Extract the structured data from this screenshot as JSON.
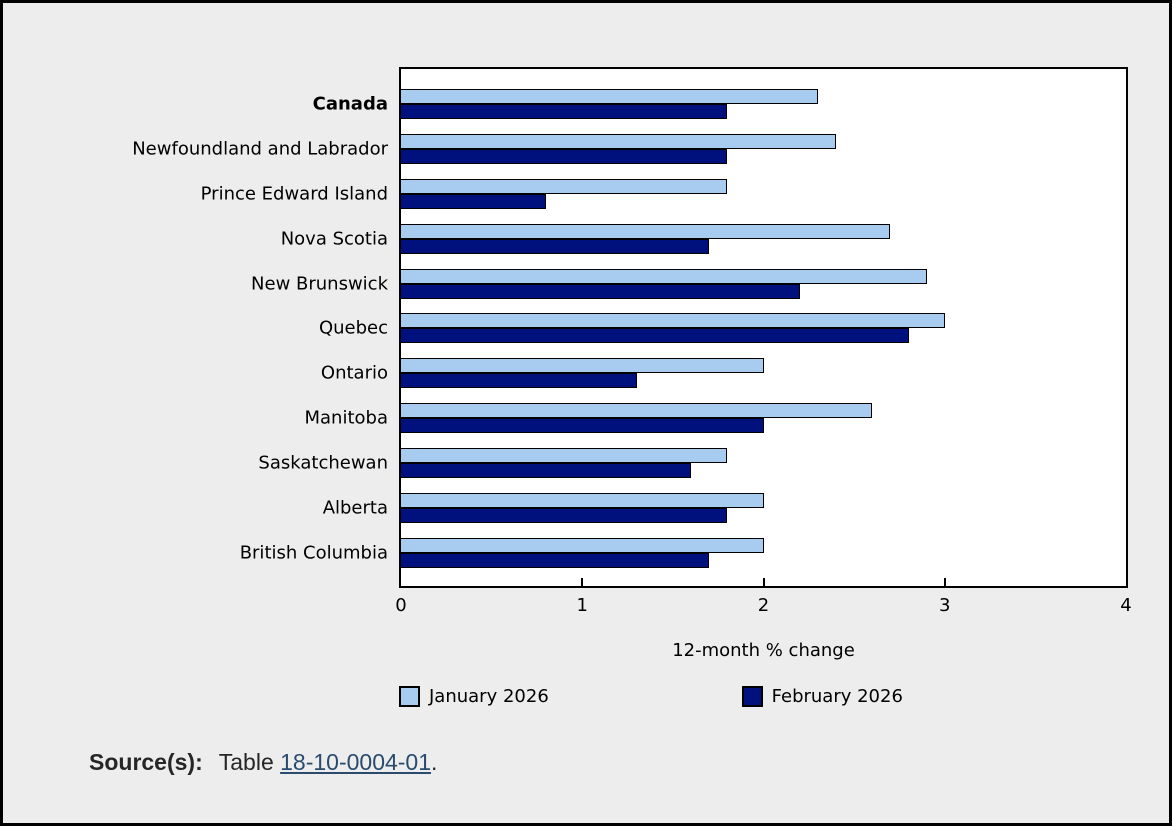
{
  "chart_data": {
    "type": "bar",
    "orientation": "horizontal",
    "title": "",
    "xlabel": "12-month % change",
    "ylabel": "",
    "xlim": [
      0,
      4
    ],
    "xticks": [
      0,
      1,
      2,
      3,
      4
    ],
    "grid": false,
    "legend_position": "bottom",
    "categories": [
      "Canada",
      "Newfoundland and Labrador",
      "Prince Edward Island",
      "Nova Scotia",
      "New Brunswick",
      "Quebec",
      "Ontario",
      "Manitoba",
      "Saskatchewan",
      "Alberta",
      "British Columbia"
    ],
    "bold_categories": [
      "Canada"
    ],
    "series": [
      {
        "name": "January 2026",
        "color": "#A8CBF0",
        "values": [
          2.3,
          2.4,
          1.8,
          2.7,
          2.9,
          3.0,
          2.0,
          2.6,
          1.8,
          2.0,
          2.0
        ]
      },
      {
        "name": "February 2026",
        "color": "#00107C",
        "values": [
          1.8,
          1.8,
          0.8,
          1.7,
          2.2,
          2.8,
          1.3,
          2.0,
          1.6,
          1.8,
          1.7
        ]
      }
    ]
  },
  "source": {
    "prefix": "Source(s):",
    "text": "Table",
    "link": "18-10-0004-01",
    "suffix": "."
  },
  "colors": {
    "page_background": "#EDEDED",
    "plot_background": "#FFFFFF",
    "frame_border": "#000000",
    "january_bar": "#A8CBF0",
    "february_bar": "#00107C",
    "link": "#284B6E"
  }
}
